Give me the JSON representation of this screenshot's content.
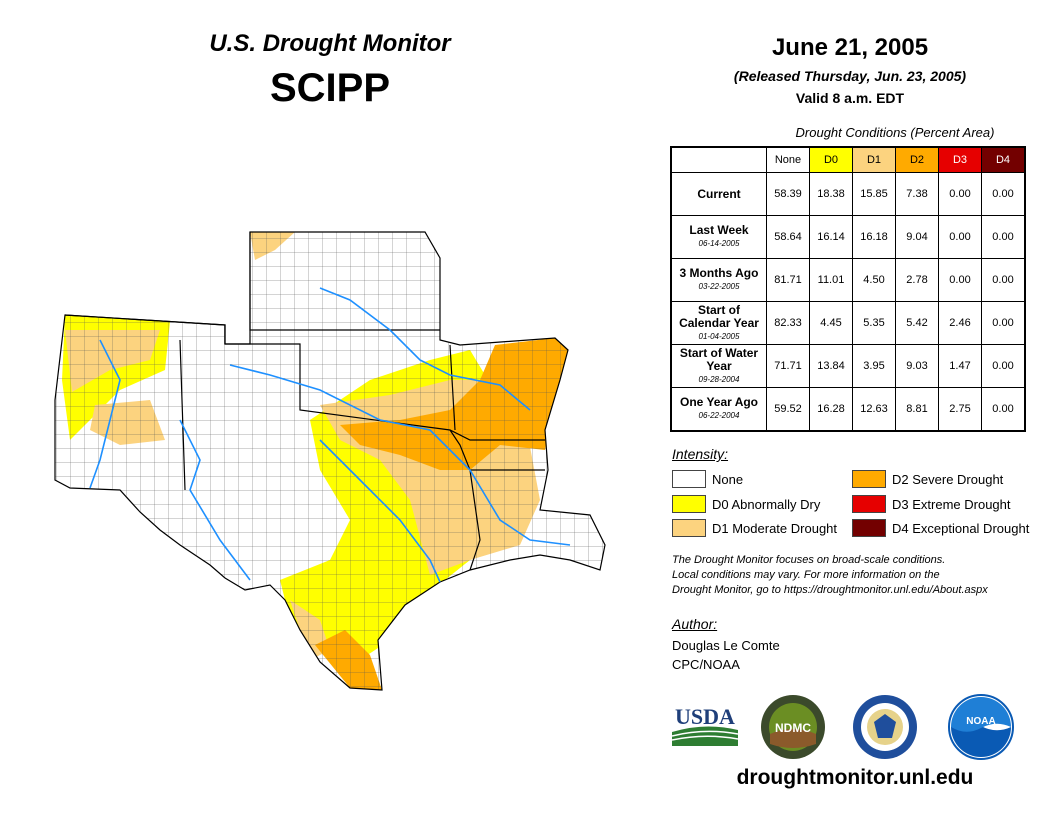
{
  "header": {
    "title": "U.S. Drought Monitor",
    "region": "SCIPP",
    "date": "June 21, 2005",
    "released": "(Released Thursday, Jun. 23, 2005)",
    "valid": "Valid 8 a.m. EDT"
  },
  "table": {
    "caption": "Drought Conditions (Percent Area)",
    "columns": [
      "None",
      "D0",
      "D1",
      "D2",
      "D3",
      "D4"
    ],
    "column_colors": [
      "#ffffff",
      "#ffff00",
      "#fcd37f",
      "#ffaa00",
      "#e60000",
      "#730000"
    ],
    "rows": [
      {
        "label": "Current",
        "date": "",
        "values": [
          "58.39",
          "18.38",
          "15.85",
          "7.38",
          "0.00",
          "0.00"
        ]
      },
      {
        "label": "Last Week",
        "date": "06-14-2005",
        "values": [
          "58.64",
          "16.14",
          "16.18",
          "9.04",
          "0.00",
          "0.00"
        ]
      },
      {
        "label": "3 Months Ago",
        "date": "03-22-2005",
        "values": [
          "81.71",
          "11.01",
          "4.50",
          "2.78",
          "0.00",
          "0.00"
        ]
      },
      {
        "label": "Start of Calendar Year",
        "date": "01-04-2005",
        "values": [
          "82.33",
          "4.45",
          "5.35",
          "5.42",
          "2.46",
          "0.00"
        ]
      },
      {
        "label": "Start of Water Year",
        "date": "09-28-2004",
        "values": [
          "71.71",
          "13.84",
          "3.95",
          "9.03",
          "1.47",
          "0.00"
        ]
      },
      {
        "label": "One Year Ago",
        "date": "06-22-2004",
        "values": [
          "59.52",
          "16.28",
          "12.63",
          "8.81",
          "2.75",
          "0.00"
        ]
      }
    ]
  },
  "legend": {
    "title": "Intensity:",
    "items": [
      {
        "label": "None",
        "color": "#ffffff"
      },
      {
        "label": "D0 Abnormally Dry",
        "color": "#ffff00"
      },
      {
        "label": "D1 Moderate Drought",
        "color": "#fcd37f"
      },
      {
        "label": "D2 Severe Drought",
        "color": "#ffaa00"
      },
      {
        "label": "D3 Extreme Drought",
        "color": "#e60000"
      },
      {
        "label": "D4 Exceptional Drought",
        "color": "#730000"
      }
    ]
  },
  "note": {
    "line1": "The Drought Monitor focuses on broad-scale conditions.",
    "line2": "Local conditions may vary. For more information on the",
    "line3": "Drought Monitor, go to https://droughtmonitor.unl.edu/About.aspx"
  },
  "author": {
    "title": "Author:",
    "name": "Douglas Le Comte",
    "org": "CPC/NOAA"
  },
  "logos": {
    "usda": "USDA",
    "ndmc": "NDMC",
    "noaa": "NOAA"
  },
  "footer": {
    "url": "droughtmonitor.unl.edu"
  }
}
